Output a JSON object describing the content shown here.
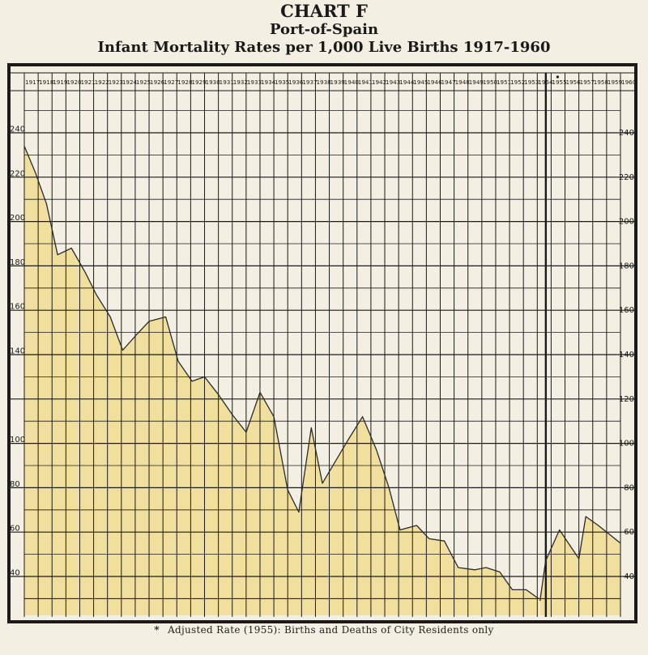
{
  "title": "CHART F",
  "subtitle_1": "Port-of-Spain",
  "subtitle_2": "Infant Mortality Rates per 1,000  Live Births 1917-1960",
  "footnote_marker": "*",
  "footnote": "Adjusted Rate (1955): Births and Deaths of City Residents only",
  "colors": {
    "fill": "#f0dc90",
    "fill_light": "#f7eab8",
    "line": "#2a2a2a",
    "frame": "#1a1a1a",
    "paper": "#f3efe3"
  },
  "chart_data": {
    "type": "area",
    "title": "Infant Mortality Rates per 1,000  Live Births 1917-1960",
    "xlabel": "",
    "ylabel": "",
    "grid": true,
    "ylim": [
      20,
      260
    ],
    "yticks": [
      240,
      220,
      200,
      180,
      160,
      140,
      120,
      100,
      80,
      60,
      40
    ],
    "y_tick_labels_left": [
      "240",
      "220",
      "200",
      "180",
      "160",
      "140",
      "",
      "100",
      "80",
      "60",
      "40"
    ],
    "y_tick_labels_right": [
      "240",
      "220",
      "200",
      "180",
      "160",
      "140",
      "120",
      "100",
      "80",
      "60",
      "40"
    ],
    "categories": [
      "1917",
      "1918",
      "1919",
      "1920",
      "1921",
      "1922",
      "1923",
      "1924",
      "1925",
      "1926",
      "1927",
      "1928",
      "1929",
      "1930",
      "1931",
      "1932",
      "1933",
      "1934",
      "1935",
      "1936",
      "1937",
      "1938",
      "1939",
      "1940",
      "1941",
      "1942",
      "1943",
      "1944",
      "1945",
      "1946",
      "1947",
      "1948",
      "1949",
      "1950",
      "1951",
      "1952",
      "1953",
      "1954",
      "1955",
      "1956",
      "1957",
      "1958",
      "1959",
      "1960"
    ],
    "divider_after": "1954",
    "marked_year": "1955",
    "series": [
      {
        "values": [
          [
            1917.0,
            234
          ],
          [
            1917.8,
            222
          ],
          [
            1918.6,
            208
          ],
          [
            1919.4,
            185
          ],
          [
            1920.4,
            188
          ],
          [
            1921.4,
            177
          ],
          [
            1922.2,
            167
          ],
          [
            1923.2,
            157
          ],
          [
            1924.1,
            142
          ],
          [
            1925.1,
            149
          ],
          [
            1926.0,
            155
          ],
          [
            1927.2,
            157
          ],
          [
            1928.1,
            137
          ],
          [
            1929.1,
            128
          ],
          [
            1930.0,
            130
          ],
          [
            1931.0,
            122
          ],
          [
            1932.0,
            113
          ],
          [
            1933.0,
            105
          ],
          [
            1934.0,
            123
          ],
          [
            1935.0,
            112
          ],
          [
            1936.0,
            79
          ],
          [
            1936.8,
            69
          ],
          [
            1937.7,
            107
          ],
          [
            1938.5,
            82
          ],
          [
            1940.4,
            102
          ],
          [
            1941.4,
            112
          ],
          [
            1942.4,
            97
          ],
          [
            1943.3,
            80
          ],
          [
            1944.1,
            61
          ],
          [
            1945.3,
            63
          ],
          [
            1946.2,
            57
          ],
          [
            1947.3,
            56
          ],
          [
            1948.3,
            44
          ],
          [
            1949.5,
            43
          ],
          [
            1950.3,
            44
          ],
          [
            1951.3,
            42
          ],
          [
            1952.2,
            34
          ],
          [
            1953.2,
            34
          ],
          [
            1954.1,
            30
          ]
        ]
      },
      {
        "values": [
          [
            1954.2,
            29
          ],
          [
            1954.6,
            47
          ],
          [
            1955.6,
            61
          ],
          [
            1957.0,
            48
          ],
          [
            1957.5,
            67
          ],
          [
            1958.4,
            63
          ],
          [
            1959.2,
            59
          ],
          [
            1960.0,
            55
          ]
        ]
      }
    ]
  }
}
